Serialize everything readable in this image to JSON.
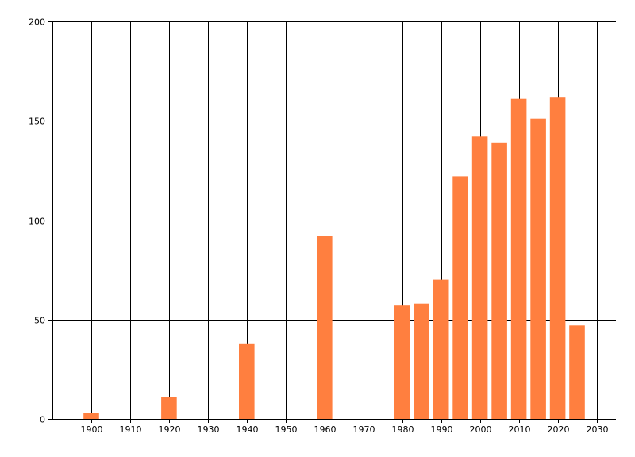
{
  "chart_data": {
    "type": "bar",
    "title": "",
    "xlabel": "",
    "ylabel": "",
    "x": [
      1900,
      1920,
      1940,
      1960,
      1980,
      1985,
      1990,
      1995,
      2000,
      2005,
      2010,
      2015,
      2020,
      2025
    ],
    "values": [
      3,
      11,
      38,
      92,
      57,
      58,
      70,
      122,
      142,
      139,
      161,
      151,
      162,
      47
    ],
    "xlim": [
      1890,
      2035
    ],
    "ylim": [
      0,
      200
    ],
    "x_ticks": [
      1900,
      1910,
      1920,
      1930,
      1940,
      1950,
      1960,
      1970,
      1980,
      1990,
      2000,
      2010,
      2020,
      2030
    ],
    "x_tick_labels": [
      "1900",
      "1910",
      "1920",
      "1930",
      "1940",
      "1950",
      "1960",
      "1970",
      "1980",
      "1990",
      "2000",
      "2010",
      "2020",
      "2030"
    ],
    "y_ticks": [
      0,
      50,
      100,
      150,
      200
    ],
    "y_tick_labels": [
      "0",
      "50",
      "100",
      "150",
      "200"
    ],
    "bar_width_years": 4,
    "grid": true,
    "legend": "none",
    "colors": {
      "bar": "#ff7f3f",
      "grid": "#000000",
      "axis": "#000000",
      "background": "#ffffff"
    }
  }
}
